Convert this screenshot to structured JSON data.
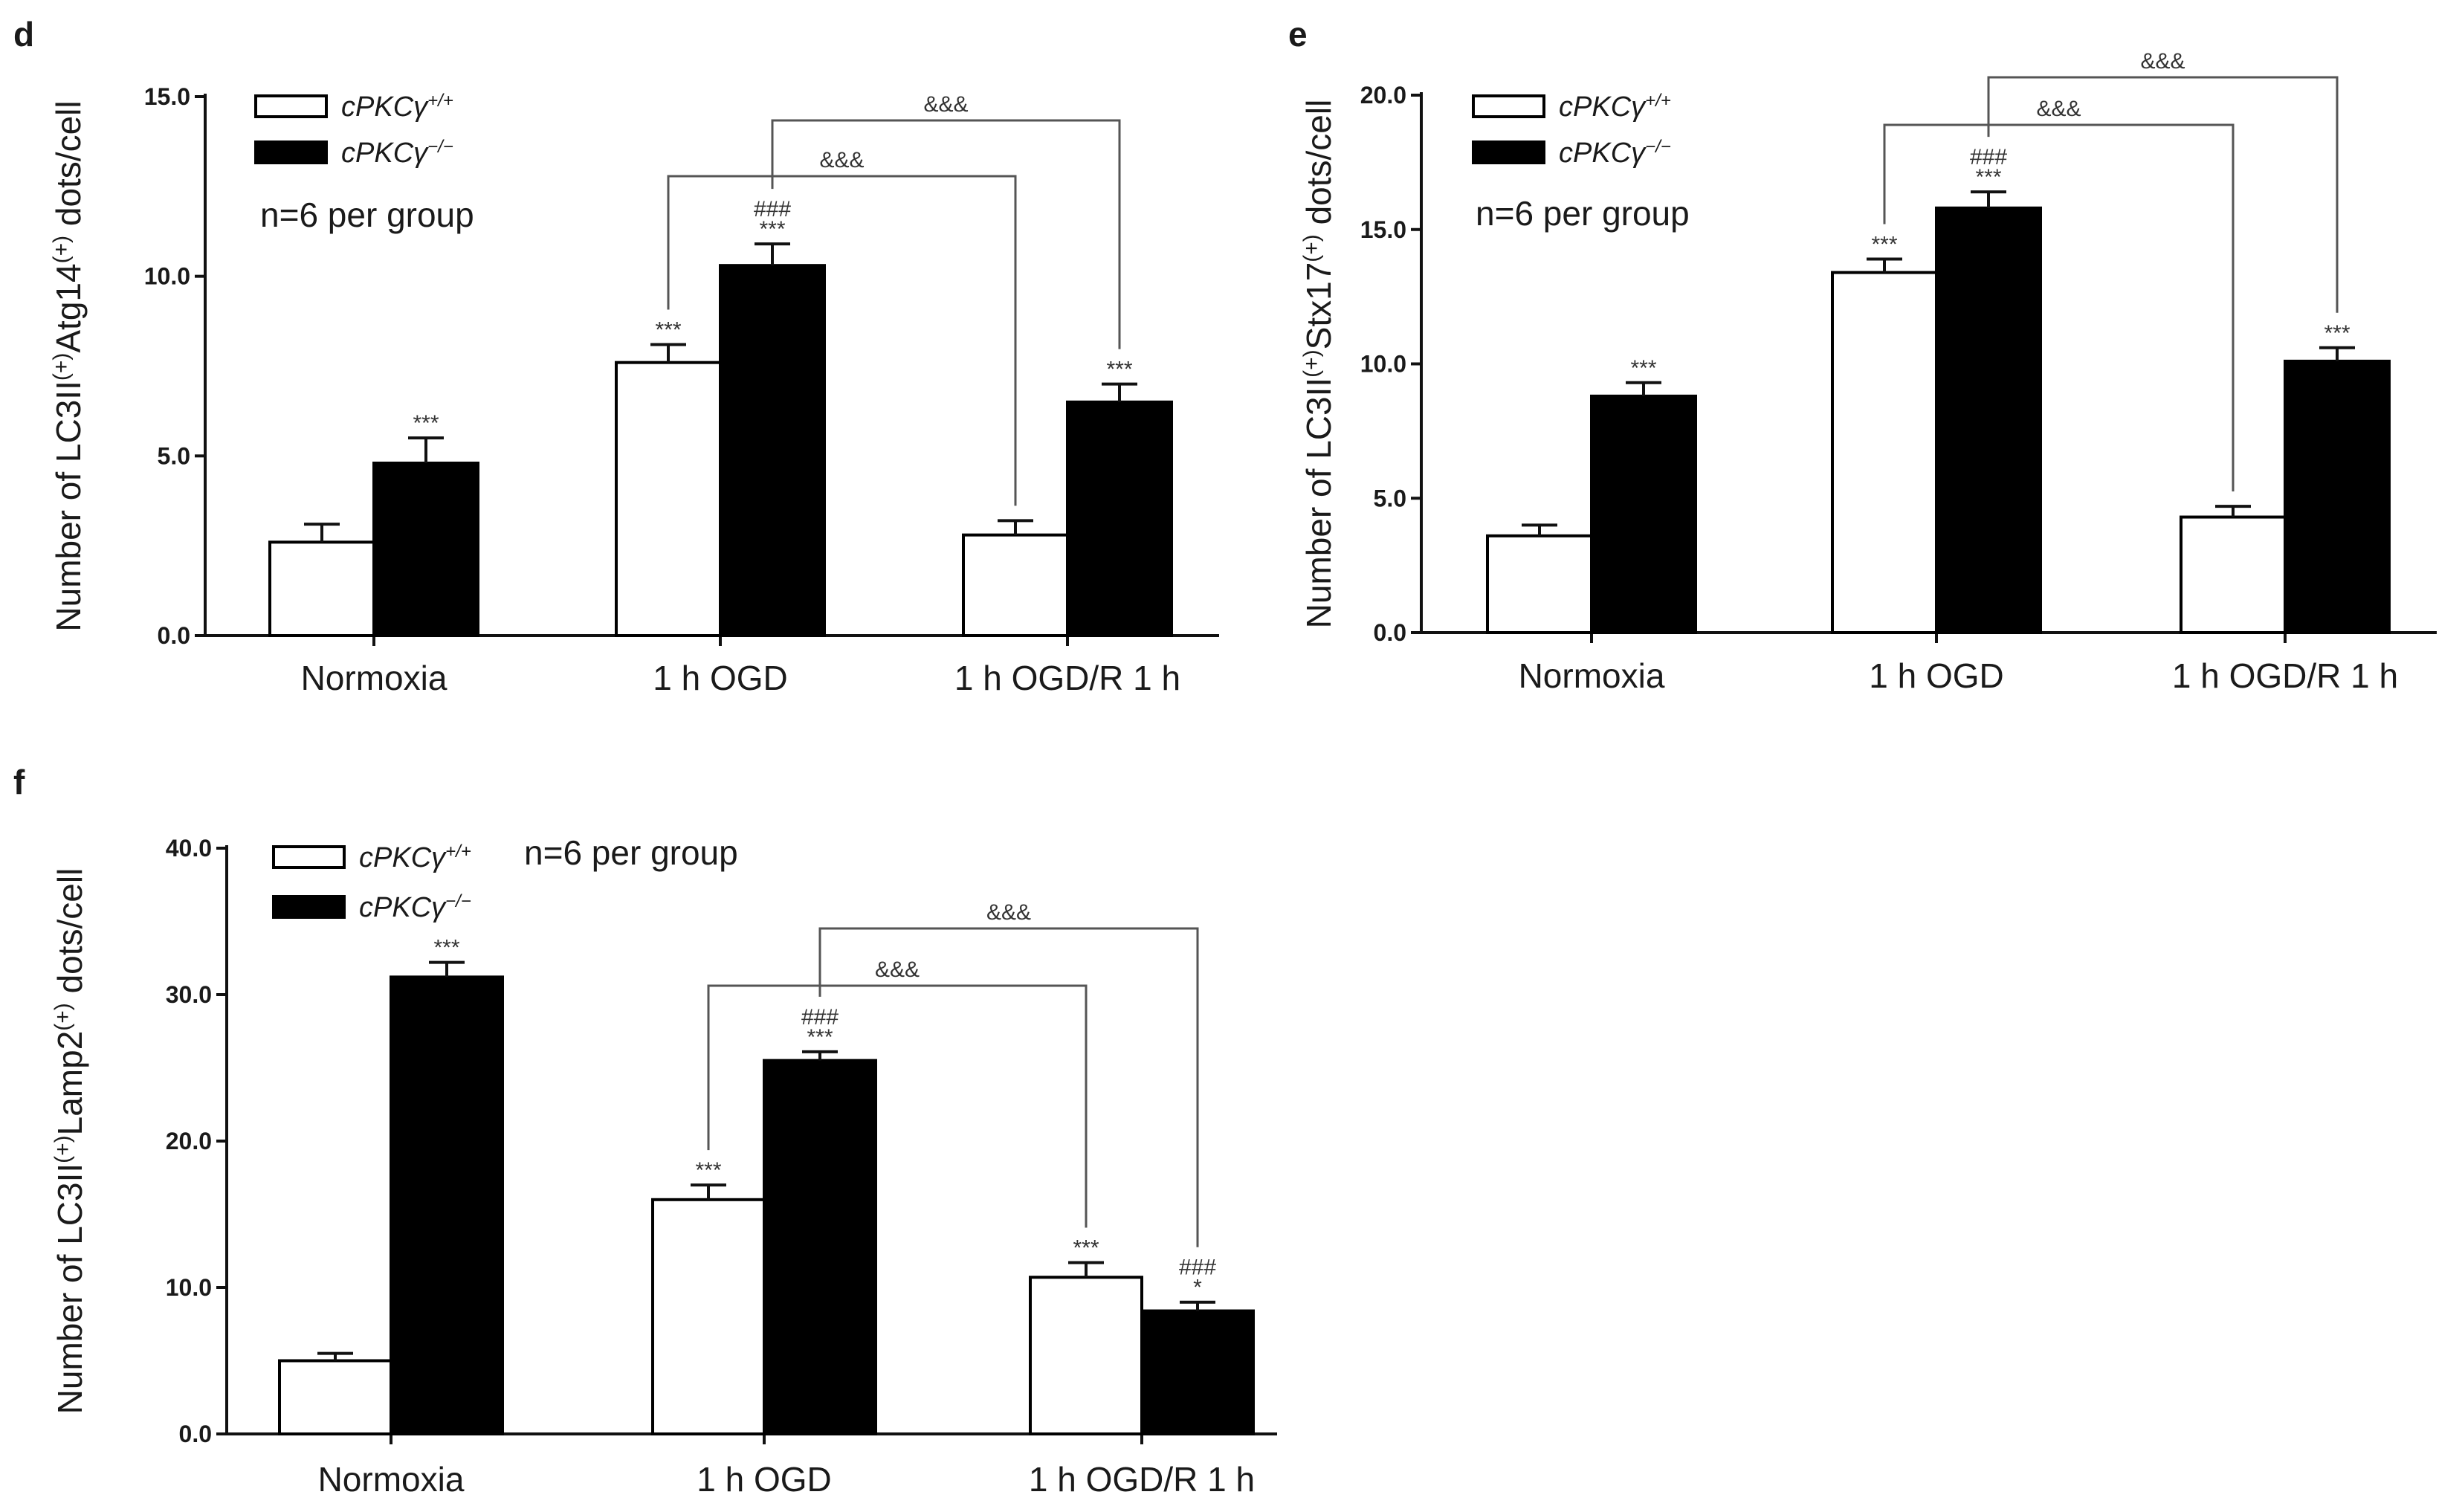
{
  "chart_data": [
    {
      "panel": "d",
      "type": "bar",
      "ylabel_parts": [
        "Number of LC3II",
        "(+)",
        "Atg14",
        "(+)",
        " dots/cell"
      ],
      "ylim": [
        0,
        15
      ],
      "yticks": [
        "0.0",
        "5.0",
        "10.0",
        "15.0"
      ],
      "categories": [
        "Normoxia",
        "1 h OGD",
        "1 h OGD/R 1 h"
      ],
      "series": [
        {
          "name_base": "cPKCγ",
          "name_sup": "+/+",
          "fill": "#ffffff",
          "values": [
            2.6,
            7.6,
            2.8
          ],
          "errors": [
            0.5,
            0.5,
            0.4
          ],
          "marks": [
            [],
            [
              "***"
            ],
            []
          ]
        },
        {
          "name_base": "cPKCγ",
          "name_sup": "−/−",
          "fill": "#000000",
          "values": [
            4.8,
            10.3,
            6.5
          ],
          "errors": [
            0.7,
            0.6,
            0.5
          ],
          "marks": [
            [
              "***"
            ],
            [
              "###",
              "***"
            ],
            [
              "***"
            ]
          ]
        }
      ],
      "brackets": [
        {
          "from": [
            1,
            0
          ],
          "to": [
            2,
            0
          ],
          "label": "&&&",
          "level": 0
        },
        {
          "from": [
            1,
            1
          ],
          "to": [
            2,
            1
          ],
          "label": "&&&",
          "level": 1
        }
      ],
      "annotation": "n=6 per group"
    },
    {
      "panel": "e",
      "type": "bar",
      "ylabel_parts": [
        "Number of LC3II",
        "(+)",
        "Stx17",
        "(+)",
        " dots/cell"
      ],
      "ylim": [
        0,
        20
      ],
      "yticks": [
        "0.0",
        "5.0",
        "10.0",
        "15.0",
        "20.0"
      ],
      "categories": [
        "Normoxia",
        "1 h OGD",
        "1 h OGD/R 1 h"
      ],
      "series": [
        {
          "name_base": "cPKCγ",
          "name_sup": "+/+",
          "fill": "#ffffff",
          "values": [
            3.6,
            13.4,
            4.3
          ],
          "errors": [
            0.4,
            0.5,
            0.4
          ],
          "marks": [
            [],
            [
              "***"
            ],
            []
          ]
        },
        {
          "name_base": "cPKCγ",
          "name_sup": "−/−",
          "fill": "#000000",
          "values": [
            8.8,
            15.8,
            10.1
          ],
          "errors": [
            0.5,
            0.6,
            0.5
          ],
          "marks": [
            [
              "***"
            ],
            [
              "###",
              "***"
            ],
            [
              "***"
            ]
          ]
        }
      ],
      "brackets": [
        {
          "from": [
            1,
            0
          ],
          "to": [
            2,
            0
          ],
          "label": "&&&",
          "level": 0
        },
        {
          "from": [
            1,
            1
          ],
          "to": [
            2,
            1
          ],
          "label": "&&&",
          "level": 1
        }
      ],
      "annotation": "n=6 per group"
    },
    {
      "panel": "f",
      "type": "bar",
      "ylabel_parts": [
        "Number of LC3II",
        "(+)",
        "Lamp2",
        "(+)",
        " dots/cell"
      ],
      "ylim": [
        0,
        40
      ],
      "yticks": [
        "0.0",
        "10.0",
        "20.0",
        "30.0",
        "40.0"
      ],
      "categories": [
        "Normoxia",
        "1 h OGD",
        "1 h OGD/R 1 h"
      ],
      "series": [
        {
          "name_base": "cPKCγ",
          "name_sup": "+/+",
          "fill": "#ffffff",
          "values": [
            5.0,
            16.0,
            10.7
          ],
          "errors": [
            0.5,
            1.0,
            1.0
          ],
          "marks": [
            [],
            [
              "***"
            ],
            [
              "***"
            ]
          ]
        },
        {
          "name_base": "cPKCγ",
          "name_sup": "−/−",
          "fill": "#000000",
          "values": [
            31.2,
            25.5,
            8.4
          ],
          "errors": [
            1.0,
            0.6,
            0.6
          ],
          "marks": [
            [
              "***"
            ],
            [
              "###",
              "***"
            ],
            [
              "###",
              "*"
            ]
          ]
        }
      ],
      "brackets": [
        {
          "from": [
            1,
            0
          ],
          "to": [
            2,
            0
          ],
          "label": "&&&",
          "level": 0
        },
        {
          "from": [
            1,
            1
          ],
          "to": [
            2,
            1
          ],
          "label": "&&&",
          "level": 1
        }
      ],
      "annotation": "n=6 per group"
    }
  ]
}
